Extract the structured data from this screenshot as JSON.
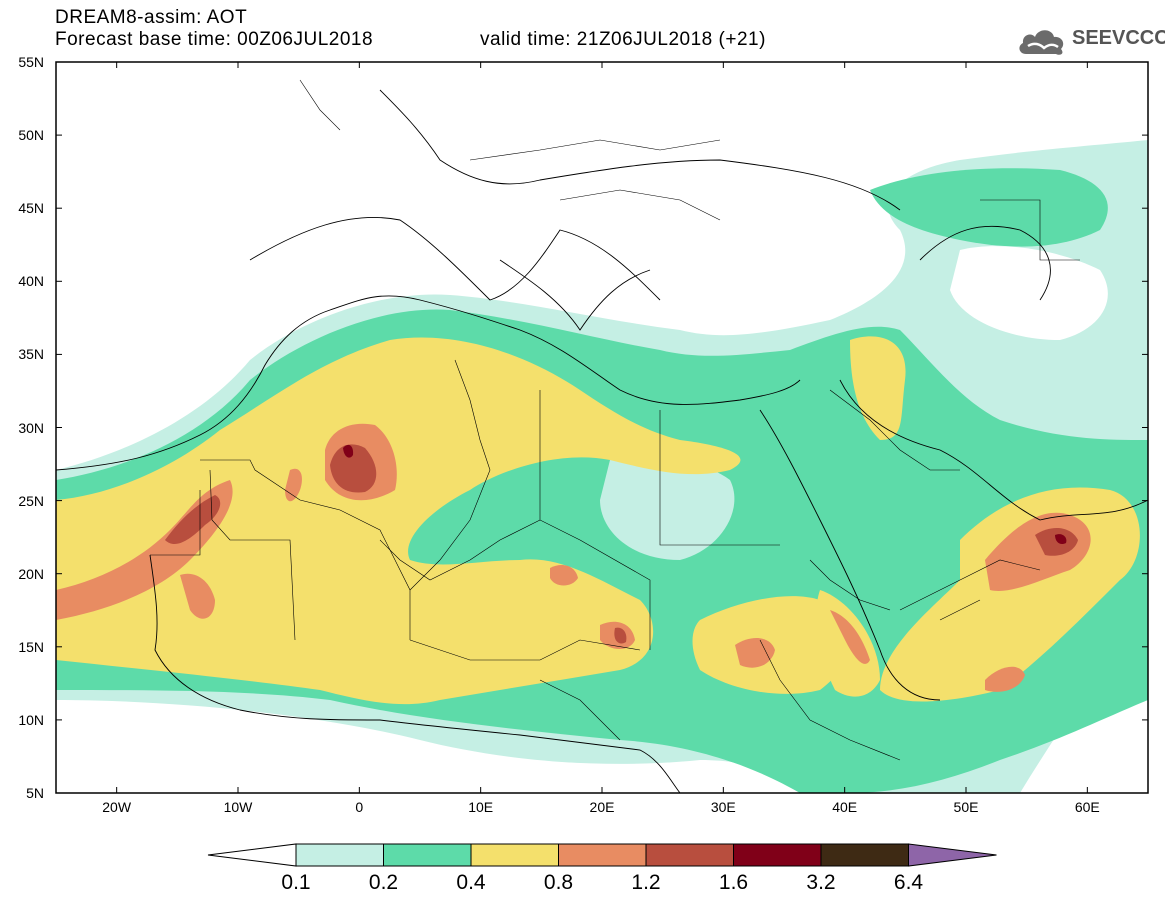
{
  "title": {
    "line1": "DREAM8-assim: AOT",
    "line2": "Forecast base time: 00Z06JUL2018",
    "valid": "valid time: 21Z06JUL2018 (+21)"
  },
  "logo": {
    "text": "SEEVCCC",
    "icon": "cloud-icon"
  },
  "map": {
    "lat_labels": [
      "55N",
      "50N",
      "45N",
      "40N",
      "35N",
      "30N",
      "25N",
      "20N",
      "15N",
      "10N",
      "5N"
    ],
    "lon_labels": [
      "20W",
      "10W",
      "0",
      "10E",
      "20E",
      "30E",
      "40E",
      "50E",
      "60E"
    ],
    "lon_range": [
      -25,
      65
    ],
    "lat_range": [
      5,
      55
    ]
  },
  "colorbar": {
    "levels": [
      "0.1",
      "0.2",
      "0.4",
      "0.8",
      "1.2",
      "1.6",
      "3.2",
      "6.4"
    ],
    "colors": [
      "#ffffff",
      "#c5efe4",
      "#5ddba9",
      "#f4e06c",
      "#e88c62",
      "#b84e3e",
      "#800018",
      "#3e2a14",
      "#8e65a8"
    ]
  }
}
